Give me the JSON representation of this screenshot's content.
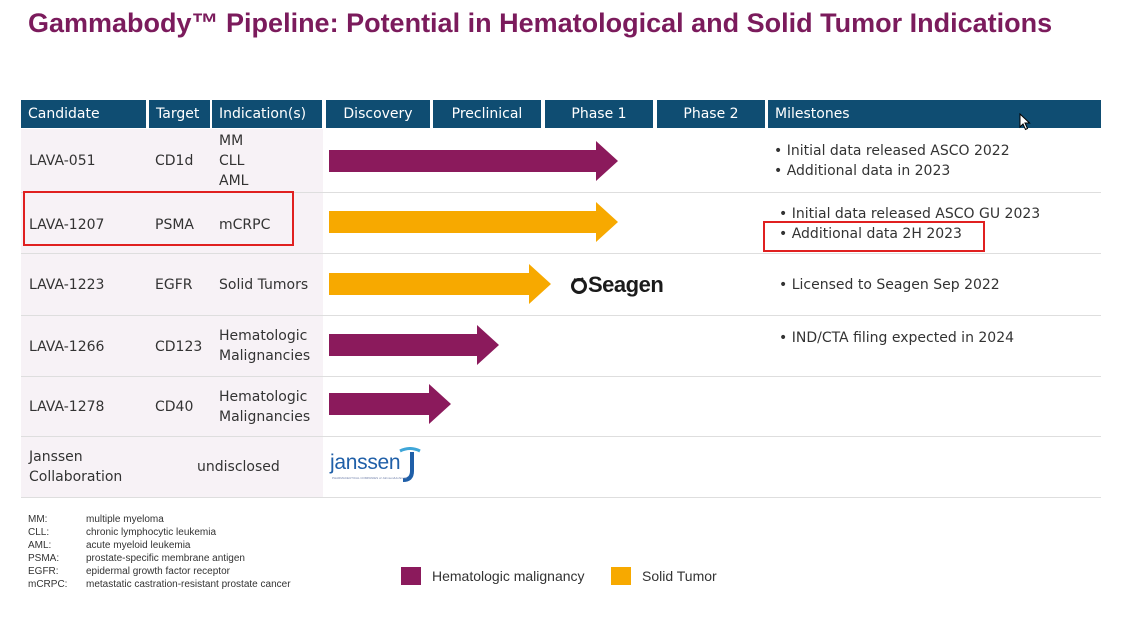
{
  "title": "Gammabody™ Pipeline: Potential in Hematological and Solid Tumor Indications",
  "headers": {
    "candidate": "Candidate",
    "target": "Target",
    "indications": "Indication(s)",
    "discovery": "Discovery",
    "preclinical": "Preclinical",
    "phase1": "Phase 1",
    "phase2": "Phase 2",
    "milestones": "Milestones"
  },
  "rows": [
    {
      "candidate": "LAVA-051",
      "target": "CD1d",
      "indication": [
        "MM",
        "CLL",
        "AML"
      ],
      "type": "heme",
      "progress": "Phase 1",
      "milestones": [
        "Initial data released ASCO 2022",
        "Additional data in 2023"
      ]
    },
    {
      "candidate": "LAVA-1207",
      "target": "PSMA",
      "indication": [
        "mCRPC"
      ],
      "type": "solid",
      "progress": "Phase 1",
      "milestones": [
        "Initial data released ASCO GU 2023",
        "Additional data 2H 2023"
      ]
    },
    {
      "candidate": "LAVA-1223",
      "target": "EGFR",
      "indication": [
        "Solid Tumors"
      ],
      "type": "solid",
      "progress": "Preclinical",
      "partner": "Seagen",
      "milestones": [
        "Licensed to Seagen Sep 2022"
      ]
    },
    {
      "candidate": "LAVA-1266",
      "target": "CD123",
      "indication": [
        "Hematologic",
        "Malignancies"
      ],
      "type": "heme",
      "progress": "Preclinical",
      "milestones": [
        "IND/CTA filing expected in 2024"
      ]
    },
    {
      "candidate": "LAVA-1278",
      "target": "CD40",
      "indication": [
        "Hematologic",
        "Malignancies"
      ],
      "type": "heme",
      "progress": "Preclinical",
      "milestones": []
    },
    {
      "candidate": [
        "Janssen",
        "Collaboration"
      ],
      "target": "undisclosed",
      "partner": "janssen",
      "partner_sub": "PHARMACEUTICAL COMPANIES of Johnson&Johnson"
    }
  ],
  "abbreviations": [
    {
      "key": "MM:",
      "value": "multiple myeloma"
    },
    {
      "key": "CLL:",
      "value": "chronic lymphocytic leukemia"
    },
    {
      "key": "AML:",
      "value": "acute myeloid leukemia"
    },
    {
      "key": "PSMA:",
      "value": "prostate-specific membrane antigen"
    },
    {
      "key": "EGFR:",
      "value": "epidermal growth factor receptor"
    },
    {
      "key": "mCRPC:",
      "value": "metastatic castration-resistant prostate cancer"
    }
  ],
  "legend": [
    {
      "label": "Hematologic malignancy",
      "color": "#8b1a5c"
    },
    {
      "label": "Solid Tumor",
      "color": "#f7a900"
    }
  ],
  "colors": {
    "title": "#7b1b5c",
    "header": "#0f4d72",
    "heme": "#8b1a5c",
    "solid": "#f7a900",
    "highlight": "#e02020"
  }
}
